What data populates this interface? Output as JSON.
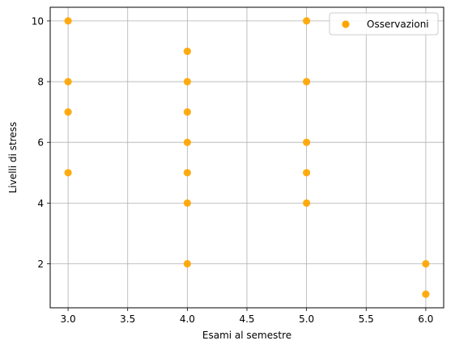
{
  "chart_data": {
    "type": "scatter",
    "title": "",
    "xlabel": "Esami al semestre",
    "ylabel": "Livelli di stress",
    "xlim": [
      2.85,
      6.15
    ],
    "ylim": [
      0.55,
      10.45
    ],
    "xticks": [
      3.0,
      3.5,
      4.0,
      4.5,
      5.0,
      5.5,
      6.0
    ],
    "xtick_labels": [
      "3.0",
      "3.5",
      "4.0",
      "4.5",
      "5.0",
      "5.5",
      "6.0"
    ],
    "yticks": [
      2,
      4,
      6,
      8,
      10
    ],
    "ytick_labels": [
      "2",
      "4",
      "6",
      "8",
      "10"
    ],
    "grid": true,
    "legend_position": "top-right",
    "series": [
      {
        "name": "Osservazioni",
        "color": "#ffa500",
        "marker": "circle",
        "x": [
          3,
          3,
          3,
          3,
          4,
          4,
          4,
          4,
          4,
          4,
          4,
          5,
          5,
          5,
          5,
          5,
          6,
          6
        ],
        "y": [
          10,
          8,
          7,
          5,
          9,
          8,
          7,
          6,
          5,
          4,
          2,
          10,
          8,
          6,
          5,
          4,
          2,
          1
        ]
      }
    ]
  }
}
